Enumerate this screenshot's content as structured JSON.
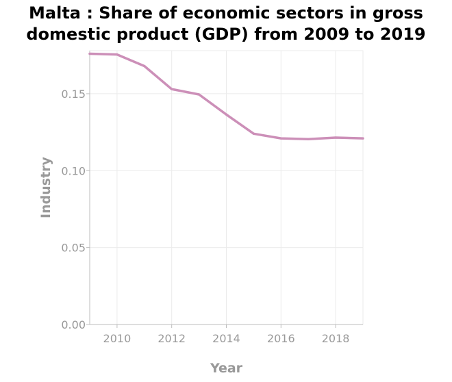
{
  "chart_data": {
    "type": "line",
    "title_lines": [
      "Malta : Share of economic sectors in gross",
      "domestic product (GDP) from 2009 to 2019"
    ],
    "xlabel": "Year",
    "ylabel": "Industry",
    "xlim": [
      2009,
      2019
    ],
    "ylim": [
      0,
      0.178
    ],
    "x_ticks": [
      2010,
      2012,
      2014,
      2016,
      2018
    ],
    "y_ticks": [
      0.0,
      0.05,
      0.1,
      0.15
    ],
    "y_tick_labels": [
      "0.00",
      "0.05",
      "0.10",
      "0.15"
    ],
    "grid": true,
    "series": [
      {
        "color": "#cc8fb8",
        "x": [
          2009,
          2010,
          2011,
          2012,
          2013,
          2014,
          2015,
          2016,
          2017,
          2018,
          2019
        ],
        "values": [
          0.176,
          0.1755,
          0.168,
          0.153,
          0.1495,
          0.1365,
          0.124,
          0.121,
          0.1205,
          0.1215,
          0.121
        ]
      }
    ]
  }
}
